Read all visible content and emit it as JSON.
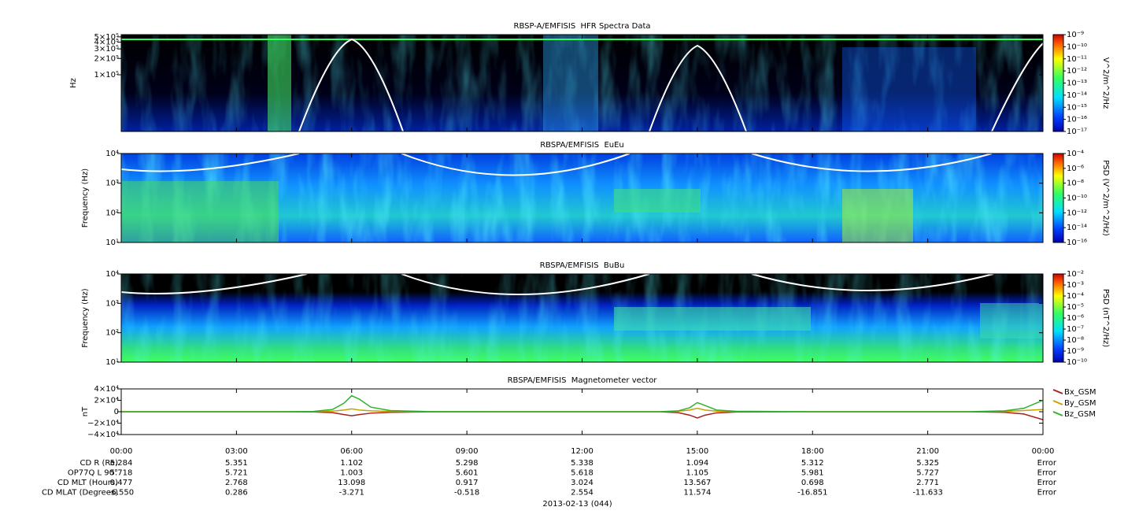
{
  "chart_data": [
    {
      "type": "spectrogram",
      "title": "RBSP-A/EMFISIS  HFR Spectra Data",
      "ylabel": "Hz",
      "log_y": true,
      "ylim": [
        9000,
        550000
      ],
      "yticks": [
        {
          "value": 100000,
          "label": "1×10⁵"
        },
        {
          "value": 200000,
          "label": "2×10⁵"
        },
        {
          "value": 300000,
          "label": "3×10⁵"
        },
        {
          "value": 400000,
          "label": "4×10⁵"
        },
        {
          "value": 500000,
          "label": "5×10⁵"
        }
      ],
      "colorbar_label": "V^2/m^2/Hz",
      "zlim": [
        1e-17,
        1e-09
      ],
      "zticks": [
        {
          "value": 1e-09,
          "label": "10⁻⁹"
        },
        {
          "value": 1e-10,
          "label": "10⁻¹⁰"
        },
        {
          "value": 1e-11,
          "label": "10⁻¹¹"
        },
        {
          "value": 1e-12,
          "label": "10⁻¹²"
        },
        {
          "value": 1e-13,
          "label": "10⁻¹³"
        },
        {
          "value": 1e-14,
          "label": "10⁻¹⁴"
        },
        {
          "value": 1e-15,
          "label": "10⁻¹⁵"
        },
        {
          "value": 1e-16,
          "label": "10⁻¹⁶"
        },
        {
          "value": 1e-17,
          "label": "10⁻¹⁷"
        }
      ]
    },
    {
      "type": "spectrogram",
      "title": "RBSPA/EMFISIS  EuEu",
      "ylabel": "Frequency (Hz)",
      "log_y": true,
      "ylim": [
        10,
        10000
      ],
      "yticks": [
        {
          "value": 10,
          "label": "10¹"
        },
        {
          "value": 100,
          "label": "10²"
        },
        {
          "value": 1000,
          "label": "10³"
        },
        {
          "value": 10000,
          "label": "10⁴"
        }
      ],
      "colorbar_label": "PSD (V^2/m^2/Hz)",
      "zlim": [
        1e-16,
        0.0001
      ],
      "zticks": [
        {
          "value": 0.0001,
          "label": "10⁻⁴"
        },
        {
          "value": 1e-06,
          "label": "10⁻⁶"
        },
        {
          "value": 1e-08,
          "label": "10⁻⁸"
        },
        {
          "value": 1e-10,
          "label": "10⁻¹⁰"
        },
        {
          "value": 1e-12,
          "label": "10⁻¹²"
        },
        {
          "value": 1e-14,
          "label": "10⁻¹⁴"
        },
        {
          "value": 1e-16,
          "label": "10⁻¹⁶"
        }
      ]
    },
    {
      "type": "spectrogram",
      "title": "RBSPA/EMFISIS  BuBu",
      "ylabel": "Frequency (Hz)",
      "log_y": true,
      "ylim": [
        10,
        10000
      ],
      "yticks": [
        {
          "value": 10,
          "label": "10¹"
        },
        {
          "value": 100,
          "label": "10²"
        },
        {
          "value": 1000,
          "label": "10³"
        },
        {
          "value": 10000,
          "label": "10⁴"
        }
      ],
      "colorbar_label": "PSD (nT^2/Hz)",
      "zlim": [
        1e-10,
        0.01
      ],
      "zticks": [
        {
          "value": 0.01,
          "label": "10⁻²"
        },
        {
          "value": 0.001,
          "label": "10⁻³"
        },
        {
          "value": 0.0001,
          "label": "10⁻⁴"
        },
        {
          "value": 1e-05,
          "label": "10⁻⁵"
        },
        {
          "value": 1e-06,
          "label": "10⁻⁶"
        },
        {
          "value": 1e-07,
          "label": "10⁻⁷"
        },
        {
          "value": 1e-08,
          "label": "10⁻⁸"
        },
        {
          "value": 1e-09,
          "label": "10⁻⁹"
        },
        {
          "value": 1e-10,
          "label": "10⁻¹⁰"
        }
      ]
    },
    {
      "type": "line",
      "title": "RBSPA/EMFISIS  Magnetometer vector",
      "ylabel": "nT",
      "xlabel": "2013-02-13 (044)",
      "xlim": [
        0,
        24
      ],
      "xticks": [
        {
          "value": 0,
          "label": "00:00"
        },
        {
          "value": 3,
          "label": "03:00"
        },
        {
          "value": 6,
          "label": "06:00"
        },
        {
          "value": 9,
          "label": "09:00"
        },
        {
          "value": 12,
          "label": "12:00"
        },
        {
          "value": 15,
          "label": "15:00"
        },
        {
          "value": 18,
          "label": "18:00"
        },
        {
          "value": 21,
          "label": "21:00"
        },
        {
          "value": 24,
          "label": "00:00"
        }
      ],
      "ylim": [
        -40000,
        40000
      ],
      "yticks": [
        {
          "value": 40000,
          "label": "4×10⁴"
        },
        {
          "value": 20000,
          "label": "2×10⁴"
        },
        0,
        {
          "value": -20000,
          "label": "−2×10⁴"
        },
        {
          "value": -40000,
          "label": "−4×10⁴"
        }
      ],
      "legend": "right",
      "x": [
        0,
        2,
        4,
        5,
        5.5,
        5.8,
        6,
        6.2,
        6.5,
        7,
        8,
        10,
        12,
        14,
        14.5,
        14.8,
        15,
        15.2,
        15.5,
        16,
        18,
        20,
        22,
        23,
        23.5,
        24
      ],
      "series": [
        {
          "name": "Bx_GSM",
          "color": "#a82020",
          "values": [
            0,
            0,
            0,
            -300,
            -1500,
            -5000,
            -7000,
            -5000,
            -2500,
            -1000,
            -200,
            0,
            0,
            0,
            -1500,
            -6000,
            -11000,
            -6000,
            -2000,
            -500,
            0,
            0,
            0,
            -1000,
            -4000,
            -14000
          ]
        },
        {
          "name": "By_GSM",
          "color": "#c8a000",
          "values": [
            0,
            0,
            0,
            200,
            1000,
            3000,
            5000,
            3000,
            1500,
            500,
            100,
            0,
            0,
            0,
            800,
            3000,
            6000,
            3000,
            1000,
            300,
            0,
            0,
            0,
            500,
            2000,
            4000
          ]
        },
        {
          "name": "Bz_GSM",
          "color": "#30b030",
          "values": [
            0,
            0,
            0,
            500,
            4000,
            15000,
            28000,
            22000,
            8000,
            2000,
            300,
            0,
            0,
            0,
            1500,
            7000,
            16000,
            11000,
            3000,
            800,
            0,
            0,
            0,
            1500,
            6000,
            20000
          ]
        }
      ]
    }
  ],
  "ephemeris": {
    "rows": [
      {
        "label": "CD R (Re)",
        "values": [
          "5.284",
          "5.351",
          "1.102",
          "5.298",
          "5.338",
          "1.094",
          "5.312",
          "5.325",
          "Error"
        ]
      },
      {
        "label": "OP77Q L 90°",
        "values": [
          "5.718",
          "5.721",
          "1.003",
          "5.601",
          "5.618",
          "1.105",
          "5.981",
          "5.727",
          "Error"
        ]
      },
      {
        "label": "CD MLT (Hours)",
        "values": [
          "0.477",
          "2.768",
          "13.098",
          "0.917",
          "3.024",
          "13.567",
          "0.698",
          "2.771",
          "Error"
        ]
      },
      {
        "label": "CD MLAT (Degrees)",
        "values": [
          "-6.550",
          "0.286",
          "-3.271",
          "-0.518",
          "2.554",
          "11.574",
          "-16.851",
          "-11.633",
          "Error"
        ]
      }
    ]
  }
}
